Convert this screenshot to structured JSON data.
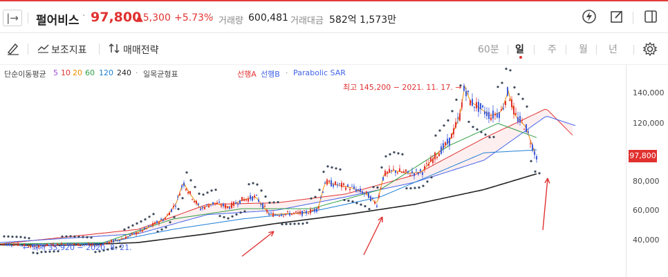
{
  "header": {
    "expand_icon": "expand-icon",
    "stock_name": "펄어비스",
    "price": "97,800",
    "change": "▲5,300",
    "change_pct": "+5.73%",
    "volume_label": "거래량",
    "volume_value": "600,481",
    "amount_label": "거래대금",
    "amount_value": "582억 1,573만",
    "icons": [
      "lightning-icon",
      "edit-icon",
      "panel-icon"
    ]
  },
  "toolbar": {
    "draw_icon": "pen-icon",
    "indicator_label": "보조지표",
    "strategy_label": "매매전략",
    "periods": [
      "60분",
      "일",
      "주",
      "월",
      "년"
    ],
    "active_period": "일",
    "settings_icon": "gear-icon"
  },
  "legend": {
    "ma_label": "단순이동평균",
    "ma_periods": [
      "5",
      "10",
      "20",
      "60",
      "120",
      "240"
    ],
    "ichimoku_label": "일목균형표",
    "span_a": "선행A",
    "span_b": "선행B",
    "sar_label": "Parabolic SAR"
  },
  "colors": {
    "up": "#e0312f",
    "down": "#3b5bdb",
    "ma5": "#9c4fd6",
    "ma10": "#e03131",
    "ma20": "#f08c00",
    "ma60": "#2f9e44",
    "ma120": "#1c7ed6",
    "ma240": "#222222",
    "span_a": "#e03131",
    "span_b": "#4263eb",
    "sar": "#3d4a5c"
  },
  "chart_data": {
    "type": "line",
    "title": "",
    "xlabel": "",
    "ylabel": "",
    "ylim": [
      31000,
      160000
    ],
    "yticks": [
      "140,000",
      "120,000",
      "100,000",
      "80,000",
      "60,000",
      "40,000"
    ],
    "current_price": "97,800",
    "annotations": {
      "high": "최고 145,200 − 2021. 11. 17. →",
      "low": "← 최저 35,920 − 2020. 8. 21."
    },
    "series": [
      {
        "name": "",
        "values": [
          [
            0,
            38000
          ],
          [
            30,
            37500
          ],
          [
            55,
            36000
          ],
          [
            60,
            37000
          ],
          [
            100,
            38000
          ],
          [
            140,
            37000
          ],
          [
            180,
            42000
          ],
          [
            210,
            48000
          ],
          [
            240,
            56000
          ],
          [
            255,
            66000
          ],
          [
            265,
            80000
          ],
          [
            275,
            72000
          ],
          [
            290,
            62000
          ],
          [
            310,
            66000
          ],
          [
            330,
            63000
          ],
          [
            350,
            68000
          ],
          [
            370,
            70000
          ],
          [
            390,
            58000
          ],
          [
            410,
            58500
          ],
          [
            440,
            59000
          ],
          [
            460,
            62000
          ],
          [
            470,
            80000
          ],
          [
            490,
            78000
          ],
          [
            510,
            76000
          ],
          [
            530,
            72000
          ],
          [
            545,
            65000
          ],
          [
            555,
            85000
          ],
          [
            570,
            88000
          ],
          [
            590,
            86000
          ],
          [
            610,
            87000
          ],
          [
            630,
            98000
          ],
          [
            650,
            108000
          ],
          [
            665,
            125000
          ],
          [
            672,
            145200
          ],
          [
            680,
            135000
          ],
          [
            695,
            130000
          ],
          [
            710,
            125000
          ],
          [
            725,
            128000
          ],
          [
            735,
            142000
          ],
          [
            745,
            125000
          ],
          [
            760,
            118000
          ],
          [
            775,
            97800
          ]
        ]
      },
      {
        "name": "240",
        "values": [
          [
            0,
            37500
          ],
          [
            100,
            37200
          ],
          [
            200,
            39000
          ],
          [
            300,
            45000
          ],
          [
            400,
            52000
          ],
          [
            500,
            58000
          ],
          [
            600,
            65000
          ],
          [
            700,
            75000
          ],
          [
            778,
            86000
          ]
        ]
      },
      {
        "name": "120",
        "values": [
          [
            0,
            38000
          ],
          [
            150,
            38500
          ],
          [
            250,
            48000
          ],
          [
            350,
            55000
          ],
          [
            450,
            60000
          ],
          [
            550,
            70000
          ],
          [
            650,
            90000
          ],
          [
            700,
            100000
          ],
          [
            778,
            102000
          ]
        ]
      },
      {
        "name": "60",
        "values": [
          [
            0,
            38000
          ],
          [
            150,
            39000
          ],
          [
            250,
            55000
          ],
          [
            350,
            62000
          ],
          [
            450,
            62000
          ],
          [
            550,
            75000
          ],
          [
            650,
            105000
          ],
          [
            720,
            120000
          ],
          [
            778,
            110000
          ]
        ]
      },
      {
        "name": "선행A",
        "values": [
          [
            0,
            38000
          ],
          [
            200,
            48000
          ],
          [
            300,
            65000
          ],
          [
            400,
            66000
          ],
          [
            500,
            72000
          ],
          [
            600,
            85000
          ],
          [
            700,
            110000
          ],
          [
            790,
            130000
          ],
          [
            830,
            111000
          ]
        ]
      },
      {
        "name": "선행B",
        "values": [
          [
            0,
            39000
          ],
          [
            200,
            45000
          ],
          [
            300,
            58000
          ],
          [
            400,
            61000
          ],
          [
            500,
            70000
          ],
          [
            600,
            80000
          ],
          [
            700,
            95000
          ],
          [
            790,
            125000
          ],
          [
            835,
            118000
          ]
        ]
      }
    ]
  }
}
